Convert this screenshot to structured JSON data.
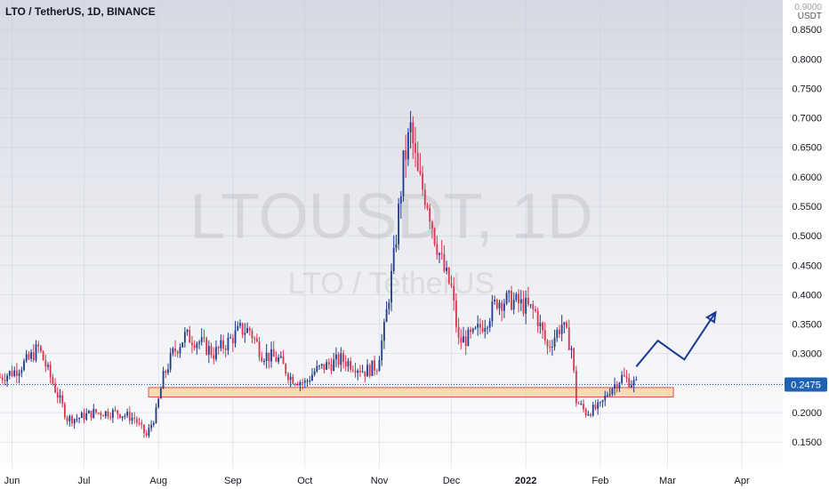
{
  "header": {
    "symbol_label": "LTO / TetherUS, 1D, BINANCE"
  },
  "axis": {
    "unit_label": "USDT",
    "top_label": "0.9000"
  },
  "watermark": {
    "main": "LTOUSDT, 1D",
    "sub": "LTO / TetherUS"
  },
  "last_price": {
    "label": "0.2475",
    "value": 0.2475,
    "bg_color": "#1f62b4"
  },
  "colors": {
    "up": "#1e3a8a",
    "down": "#d9344f",
    "zone_fill": "#fbd3a8",
    "zone_stroke": "#d9534f",
    "arrow": "#1a3a8f"
  },
  "chart_data": {
    "type": "candlestick",
    "title": "LTO / TetherUS, 1D, BINANCE",
    "y_unit": "USDT",
    "ylim": [
      0.105,
      0.9
    ],
    "y_ticks": [
      0.15,
      0.2,
      0.25,
      0.3,
      0.35,
      0.4,
      0.45,
      0.5,
      0.55,
      0.6,
      0.65,
      0.7,
      0.75,
      0.8,
      0.85
    ],
    "y_tick_labels": [
      "0.1500",
      "0.2000",
      "0.2500",
      "0.3000",
      "0.3500",
      "0.4000",
      "0.4500",
      "0.5000",
      "0.5500",
      "0.6000",
      "0.6500",
      "0.7000",
      "0.7500",
      "0.8000",
      "0.8500"
    ],
    "x_start": "2021-05-27",
    "x_end": "2022-04-18",
    "x_ticks": [
      {
        "date": "2021-06-01",
        "label": "Jun"
      },
      {
        "date": "2021-07-01",
        "label": "Jul"
      },
      {
        "date": "2021-08-01",
        "label": "Aug"
      },
      {
        "date": "2021-09-01",
        "label": "Sep"
      },
      {
        "date": "2021-10-01",
        "label": "Oct"
      },
      {
        "date": "2021-11-01",
        "label": "Nov"
      },
      {
        "date": "2021-12-01",
        "label": "Dec"
      },
      {
        "date": "2022-01-01",
        "label": "2022"
      },
      {
        "date": "2022-02-01",
        "label": "Feb"
      },
      {
        "date": "2022-03-01",
        "label": "Mar"
      },
      {
        "date": "2022-04-01",
        "label": "Apr"
      }
    ],
    "grid": true,
    "close_path": [
      [
        "2021-05-27",
        0.26
      ],
      [
        "2021-06-02",
        0.27
      ],
      [
        "2021-06-08",
        0.29
      ],
      [
        "2021-06-12",
        0.31
      ],
      [
        "2021-06-16",
        0.27
      ],
      [
        "2021-06-20",
        0.23
      ],
      [
        "2021-06-24",
        0.19
      ],
      [
        "2021-06-28",
        0.19
      ],
      [
        "2021-07-05",
        0.2
      ],
      [
        "2021-07-15",
        0.2
      ],
      [
        "2021-07-22",
        0.19
      ],
      [
        "2021-07-27",
        0.16
      ],
      [
        "2021-07-31",
        0.2
      ],
      [
        "2021-08-03",
        0.26
      ],
      [
        "2021-08-07",
        0.3
      ],
      [
        "2021-08-12",
        0.33
      ],
      [
        "2021-08-18",
        0.32
      ],
      [
        "2021-08-24",
        0.3
      ],
      [
        "2021-08-30",
        0.32
      ],
      [
        "2021-09-04",
        0.34
      ],
      [
        "2021-09-08",
        0.34
      ],
      [
        "2021-09-13",
        0.3
      ],
      [
        "2021-09-20",
        0.29
      ],
      [
        "2021-09-25",
        0.26
      ],
      [
        "2021-10-01",
        0.25
      ],
      [
        "2021-10-05",
        0.27
      ],
      [
        "2021-10-10",
        0.28
      ],
      [
        "2021-10-16",
        0.29
      ],
      [
        "2021-10-22",
        0.28
      ],
      [
        "2021-10-26",
        0.27
      ],
      [
        "2021-10-31",
        0.28
      ],
      [
        "2021-11-03",
        0.34
      ],
      [
        "2021-11-07",
        0.46
      ],
      [
        "2021-11-11",
        0.62
      ],
      [
        "2021-11-14",
        0.68
      ],
      [
        "2021-11-17",
        0.6
      ],
      [
        "2021-11-21",
        0.56
      ],
      [
        "2021-11-24",
        0.5
      ],
      [
        "2021-11-28",
        0.44
      ],
      [
        "2021-12-01",
        0.41
      ],
      [
        "2021-12-04",
        0.32
      ],
      [
        "2021-12-10",
        0.33
      ],
      [
        "2021-12-16",
        0.36
      ],
      [
        "2021-12-20",
        0.39
      ],
      [
        "2021-12-26",
        0.39
      ],
      [
        "2022-01-01",
        0.38
      ],
      [
        "2022-01-05",
        0.37
      ],
      [
        "2022-01-10",
        0.31
      ],
      [
        "2022-01-16",
        0.35
      ],
      [
        "2022-01-20",
        0.31
      ],
      [
        "2022-01-22",
        0.22
      ],
      [
        "2022-01-26",
        0.2
      ],
      [
        "2022-02-01",
        0.21
      ],
      [
        "2022-02-05",
        0.24
      ],
      [
        "2022-02-10",
        0.26
      ],
      [
        "2022-02-16",
        0.2475
      ]
    ],
    "last_price": 0.2475,
    "support_zone": {
      "from": "2021-05-27",
      "to": "2022-02-20",
      "low": 0.2265,
      "high": 0.2425
    },
    "projection": [
      [
        "2022-02-16",
        0.278
      ],
      [
        "2022-02-25",
        0.322
      ],
      [
        "2022-03-08",
        0.29
      ],
      [
        "2022-03-21",
        0.37
      ]
    ]
  }
}
